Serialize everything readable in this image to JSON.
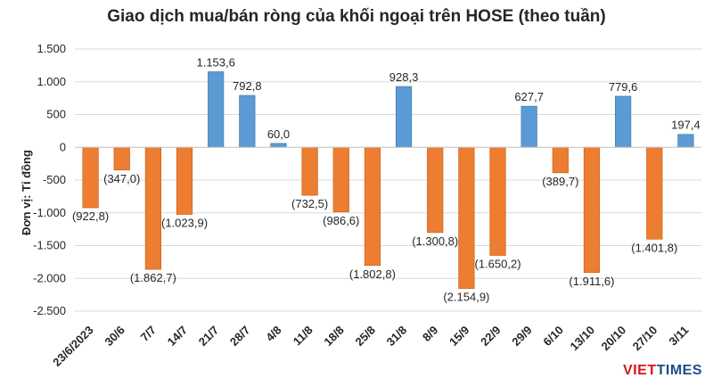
{
  "title": "Giao dịch mua/bán ròng của khối ngoại trên HOSE (theo tuần)",
  "logo": {
    "part1": "VIET",
    "part2": "TIMES"
  },
  "colors": {
    "positive": "#5b9bd5",
    "negative": "#ed7d31",
    "grid": "#d9d9d9",
    "text": "#262626"
  },
  "chart_data": {
    "type": "bar",
    "title": "Giao dịch mua/bán ròng của khối ngoại trên HOSE (theo tuần)",
    "xlabel": "",
    "ylabel": "Đơn vị: Tỉ đồng",
    "ylim": [
      -2500,
      1500
    ],
    "yticks": [
      1500,
      1000,
      500,
      0,
      -500,
      -1000,
      -1500,
      -2000,
      -2500
    ],
    "ytick_labels": [
      "1.500",
      "1.000",
      "500",
      "0",
      "-500",
      "-1.000",
      "-1.500",
      "-2.000",
      "-2.500"
    ],
    "categories": [
      "23/6/2023",
      "30/6",
      "7/7",
      "14/7",
      "21/7",
      "28/7",
      "4/8",
      "11/8",
      "18/8",
      "25/8",
      "31/8",
      "8/9",
      "15/9",
      "22/9",
      "29/9",
      "6/10",
      "13/10",
      "20/10",
      "27/10",
      "3/11"
    ],
    "values": [
      -922.8,
      -347.0,
      -1862.7,
      -1023.9,
      1153.6,
      792.8,
      60.0,
      -732.5,
      -986.6,
      -1802.8,
      928.3,
      -1300.8,
      -2154.9,
      -1650.2,
      627.7,
      -389.7,
      -1911.6,
      779.6,
      -1401.8,
      197.4
    ],
    "data_labels": [
      "(922,8)",
      "(347,0)",
      "(1.862,7)",
      "(1.023,9)",
      "1.153,6",
      "792,8",
      "60,0",
      "(732,5)",
      "(986,6)",
      "(1.802,8)",
      "928,3",
      "(1.300,8)",
      "(2.154,9)",
      "(1.650,2)",
      "627,7",
      "(389,7)",
      "(1.911,6)",
      "779,6",
      "(1.401,8)",
      "197,4"
    ],
    "grid": true,
    "legend": "none"
  }
}
